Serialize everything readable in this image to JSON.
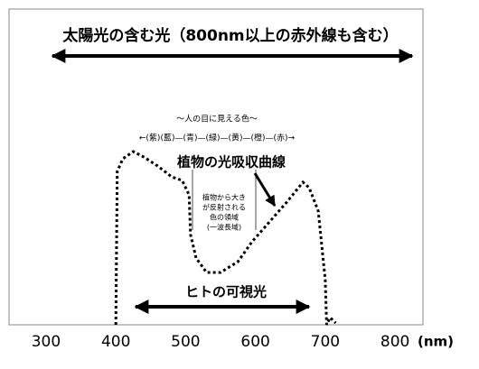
{
  "chart_data": {
    "type": "line",
    "title": "太陽光の含む光（800nm以上の赤外線も含む）",
    "note": "～人の目に見える色～",
    "color_bands": "←(紫)(藍)—(青)—(緑)—(黄)—(橙)—(赤)→",
    "curve_label": "植物の光吸収曲線",
    "reflect_label": [
      "植物から大き",
      "が反射される",
      "色の領域",
      "(一波長域)"
    ],
    "visible_label": "ヒトの可視光",
    "x_label": "(nm)",
    "x": [
      400,
      402,
      410,
      425,
      440,
      460,
      480,
      495,
      505,
      507,
      515,
      530,
      550,
      575,
      595,
      620,
      645,
      668,
      677,
      690,
      700,
      702,
      707,
      715
    ],
    "series": [
      {
        "name": "植物の光吸収曲線",
        "color": "#000000",
        "values": [
          0,
          85,
          92,
          96,
          93,
          88,
          82,
          80,
          72,
          50,
          37,
          29,
          29,
          35,
          46,
          57,
          68,
          79,
          76,
          63,
          25,
          0,
          4,
          1
        ]
      }
    ],
    "xlim": [
      247,
      840
    ],
    "xticks": [
      300,
      400,
      500,
      600,
      700,
      800
    ],
    "ylim": [
      0,
      100
    ]
  }
}
